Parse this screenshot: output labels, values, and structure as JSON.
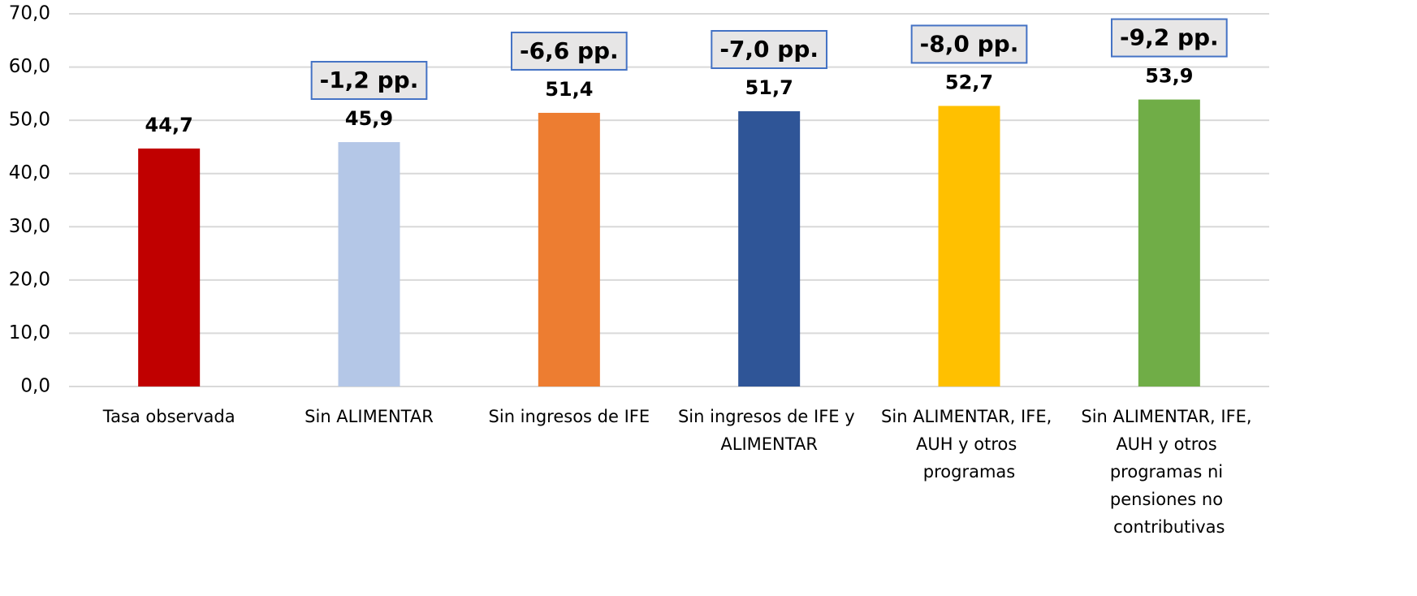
{
  "chart_data": {
    "type": "bar",
    "categories": [
      "Tasa observada",
      "Sin ALIMENTAR",
      "Sin ingresos de IFE",
      "Sin ingresos de IFE y ALIMENTAR",
      "Sin ALIMENTAR, IFE, AUH y otros programas",
      "Sin ALIMENTAR, IFE, AUH y otros programas ni pensiones no contributivas"
    ],
    "values": [
      44.7,
      45.9,
      51.4,
      51.7,
      52.7,
      53.9
    ],
    "value_labels": [
      "44,7",
      "45,9",
      "51,4",
      "51,7",
      "52,7",
      "53,9"
    ],
    "colors": [
      "#c00000",
      "#b4c7e7",
      "#ed7d31",
      "#2f5597",
      "#ffc000",
      "#70ad47"
    ],
    "ylim": [
      0,
      70
    ],
    "yticks": [
      {
        "value": 0,
        "label": "0,0"
      },
      {
        "value": 10,
        "label": "10,0"
      },
      {
        "value": 20,
        "label": "20,0"
      },
      {
        "value": 30,
        "label": "30,0"
      },
      {
        "value": 40,
        "label": "40,0"
      },
      {
        "value": 50,
        "label": "50,0"
      },
      {
        "value": 60,
        "label": "60,0"
      },
      {
        "value": 70,
        "label": "70,0"
      }
    ],
    "grid": true,
    "annotations": [
      {
        "category": "Sin ALIMENTAR",
        "text": "-1,2 pp."
      },
      {
        "category": "Sin ingresos de IFE",
        "text": "-6,6 pp."
      },
      {
        "category": "Sin ingresos de IFE y ALIMENTAR",
        "text": "-7,0 pp."
      },
      {
        "category": "Sin ALIMENTAR, IFE, AUH y otros programas",
        "text": "-8,0 pp."
      },
      {
        "category": "Sin ALIMENTAR, IFE, AUH y otros programas ni pensiones no contributivas",
        "text": "-9,2 pp."
      }
    ]
  }
}
